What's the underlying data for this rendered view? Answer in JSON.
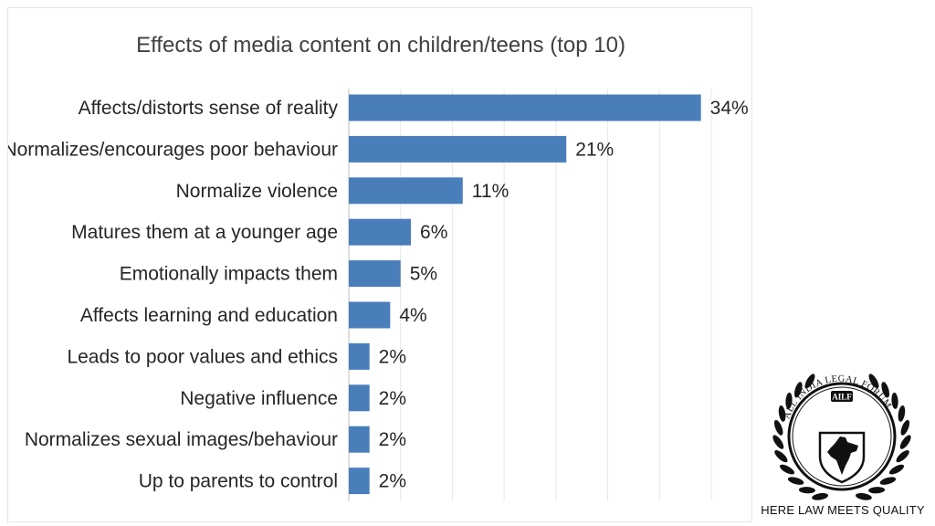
{
  "colors": {
    "bar": "#4a7ebb",
    "text": "#262626",
    "title": "#404040",
    "logo": "#111111"
  },
  "chart_data": {
    "type": "bar",
    "orientation": "horizontal",
    "title": "Effects of media content on children/teens (top 10)",
    "categories": [
      "Affects/distorts sense of reality",
      "Normalizes/encourages poor behaviour",
      "Normalize violence",
      "Matures them at a younger age",
      "Emotionally impacts them",
      "Affects learning and education",
      "Leads to poor values and ethics",
      "Negative influence",
      "Normalizes sexual images/behaviour",
      "Up to parents to control"
    ],
    "values": [
      34,
      21,
      11,
      6,
      5,
      4,
      2,
      2,
      2,
      2
    ],
    "value_labels": [
      "34%",
      "21%",
      "11%",
      "6%",
      "5%",
      "4%",
      "2%",
      "2%",
      "2%",
      "2%"
    ],
    "unit": "%",
    "xlim": [
      0,
      35
    ],
    "xlabel": "",
    "ylabel": "",
    "grid": true,
    "legend": "none"
  },
  "logo": {
    "abbreviation": "AILF",
    "ring_text": "ALL INDIA LEGAL FORUM",
    "tagline": "HERE LAW MEETS QUALITY",
    "icon": "india-map-shield-icon"
  }
}
